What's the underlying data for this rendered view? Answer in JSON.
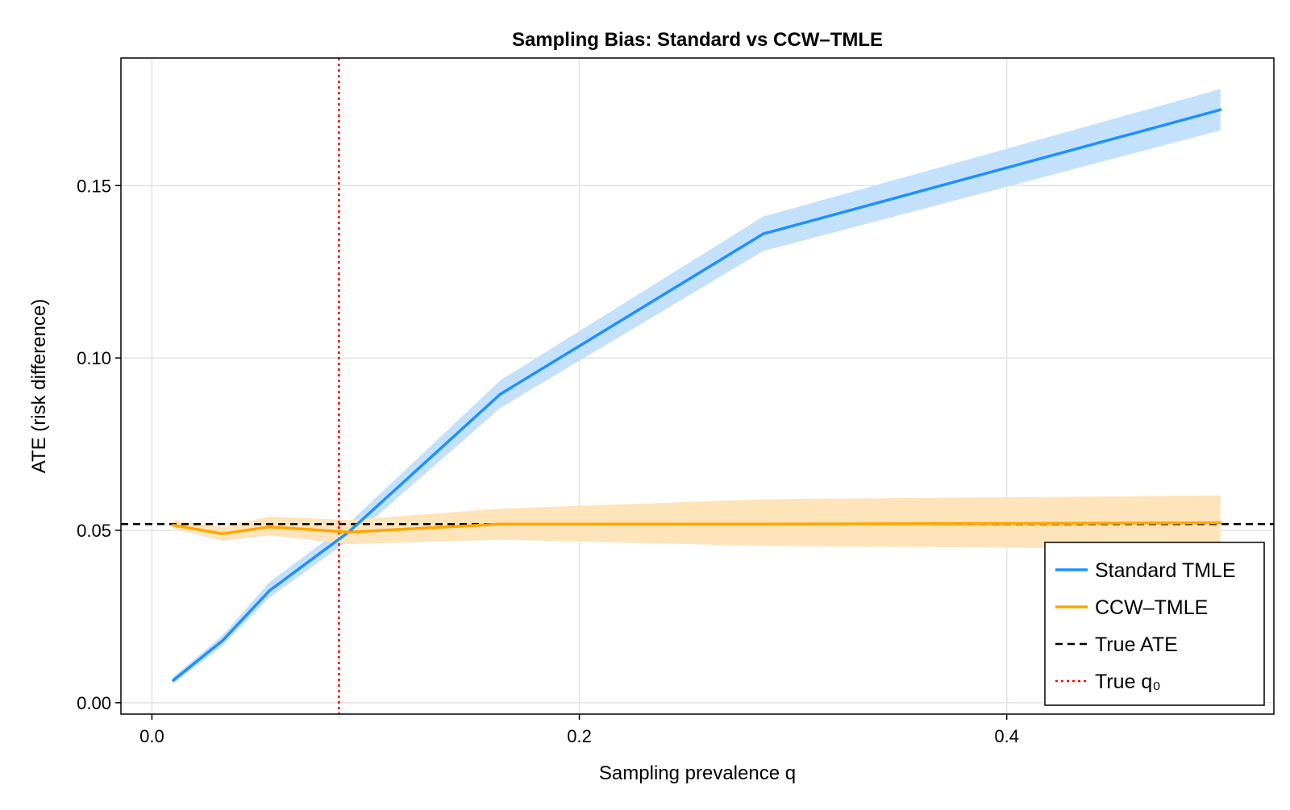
{
  "chart_data": {
    "type": "line",
    "title": "Sampling Bias: Standard vs CCW–TMLE",
    "xlabel": "Sampling prevalence q",
    "ylabel": "ATE (risk difference)",
    "xlim": [
      -0.0145,
      0.525
    ],
    "ylim": [
      -0.0033,
      0.187
    ],
    "x_ticks": [
      0.0,
      0.2,
      0.4
    ],
    "x_tick_labels": [
      "0.0",
      "0.2",
      "0.4"
    ],
    "y_ticks": [
      0.0,
      0.05,
      0.1,
      0.15
    ],
    "y_tick_labels": [
      "0.00",
      "0.05",
      "0.10",
      "0.15"
    ],
    "grid": true,
    "legend_position": "bottom-right",
    "series": [
      {
        "name": "Standard TMLE",
        "color": "#1e90ff",
        "band_color": "#c4e1fb",
        "x": [
          0.01,
          0.033,
          0.055,
          0.092,
          0.163,
          0.286,
          0.5
        ],
        "y": [
          0.0065,
          0.018,
          0.0325,
          0.0495,
          0.0895,
          0.136,
          0.172
        ],
        "lower": [
          0.0055,
          0.0165,
          0.0305,
          0.047,
          0.0855,
          0.131,
          0.166
        ],
        "upper": [
          0.0075,
          0.0195,
          0.035,
          0.052,
          0.0935,
          0.141,
          0.178
        ]
      },
      {
        "name": "CCW–TMLE",
        "color": "#ffa500",
        "band_color": "#fde4ba",
        "x": [
          0.01,
          0.033,
          0.055,
          0.092,
          0.163,
          0.286,
          0.5
        ],
        "y": [
          0.0515,
          0.049,
          0.051,
          0.0495,
          0.0518,
          0.0518,
          0.0522
        ],
        "lower": [
          0.0505,
          0.047,
          0.0485,
          0.046,
          0.0473,
          0.0455,
          0.0445
        ],
        "upper": [
          0.053,
          0.051,
          0.054,
          0.053,
          0.0563,
          0.059,
          0.0601
        ]
      }
    ],
    "reference_lines": [
      {
        "name": "True ATE",
        "orientation": "horizontal",
        "value": 0.0518,
        "color": "#000000",
        "style": "dashed"
      },
      {
        "name": "True q₀",
        "orientation": "vertical",
        "value": 0.0875,
        "color": "#ff0000",
        "style": "dotted"
      }
    ]
  }
}
